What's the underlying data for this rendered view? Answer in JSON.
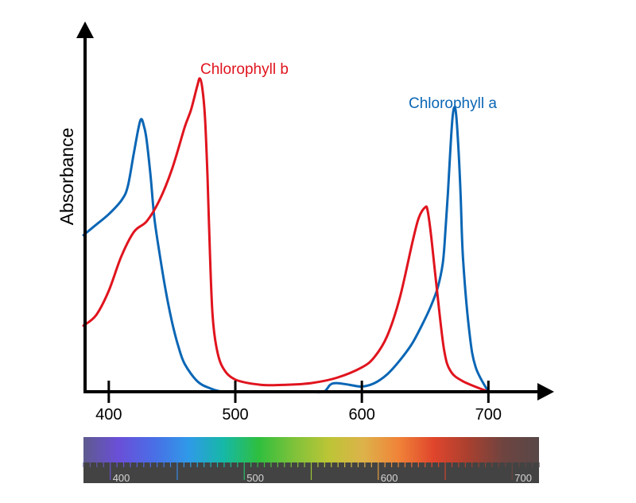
{
  "chart_data": {
    "type": "line",
    "title": "",
    "xlabel": "",
    "ylabel": "Absorbance",
    "xlim": [
      380,
      740
    ],
    "ylim": [
      0,
      1
    ],
    "x_ticks": [
      "400",
      "500",
      "600",
      "700"
    ],
    "grid": false,
    "series": [
      {
        "name": "Chlorophyll a",
        "color": "#0a66b5",
        "x": [
          380,
          390,
          400,
          410,
          415,
          420,
          425,
          428,
          430,
          433,
          436,
          440,
          445,
          450,
          455,
          460,
          470,
          480,
          490,
          500,
          510,
          520,
          530,
          540,
          550,
          560,
          570,
          575,
          580,
          590,
          600,
          610,
          620,
          630,
          640,
          650,
          655,
          660,
          664,
          666,
          668,
          670,
          672,
          674,
          676,
          678,
          680,
          685,
          690,
          700
        ],
        "y": [
          0.45,
          0.48,
          0.51,
          0.55,
          0.59,
          0.69,
          0.78,
          0.76,
          0.72,
          0.62,
          0.5,
          0.4,
          0.29,
          0.2,
          0.13,
          0.08,
          0.03,
          0.01,
          0.0,
          0.0,
          0.0,
          0.0,
          0.0,
          0.0,
          0.0,
          0.0,
          0.0,
          0.02,
          0.025,
          0.02,
          0.015,
          0.025,
          0.05,
          0.09,
          0.14,
          0.21,
          0.25,
          0.3,
          0.37,
          0.46,
          0.57,
          0.7,
          0.8,
          0.81,
          0.72,
          0.57,
          0.38,
          0.17,
          0.07,
          0.0
        ]
      },
      {
        "name": "Chlorophyll b",
        "color": "#e0141e",
        "x": [
          380,
          390,
          400,
          410,
          420,
          430,
          440,
          450,
          460,
          465,
          470,
          472,
          474,
          476,
          478,
          480,
          482,
          485,
          490,
          500,
          520,
          540,
          560,
          580,
          600,
          610,
          620,
          630,
          640,
          645,
          650,
          652,
          655,
          660,
          665,
          670,
          680,
          700
        ],
        "y": [
          0.19,
          0.22,
          0.29,
          0.39,
          0.46,
          0.49,
          0.55,
          0.64,
          0.76,
          0.81,
          0.88,
          0.9,
          0.87,
          0.79,
          0.62,
          0.39,
          0.22,
          0.13,
          0.07,
          0.035,
          0.02,
          0.02,
          0.025,
          0.04,
          0.07,
          0.1,
          0.16,
          0.27,
          0.43,
          0.5,
          0.53,
          0.52,
          0.44,
          0.27,
          0.12,
          0.06,
          0.03,
          0.0
        ]
      }
    ]
  },
  "spectrum": {
    "labels": [
      "400",
      "500",
      "600",
      "700"
    ],
    "gradient": [
      "#5e5a8e",
      "#6a4fd8",
      "#4a6ee6",
      "#2f9ae8",
      "#16b8a6",
      "#2fbf3e",
      "#7ec23a",
      "#bcc536",
      "#ddb24a",
      "#f08338",
      "#e0452c",
      "#a8402f",
      "#6e4440",
      "#574848"
    ],
    "band_color": "#434343"
  }
}
